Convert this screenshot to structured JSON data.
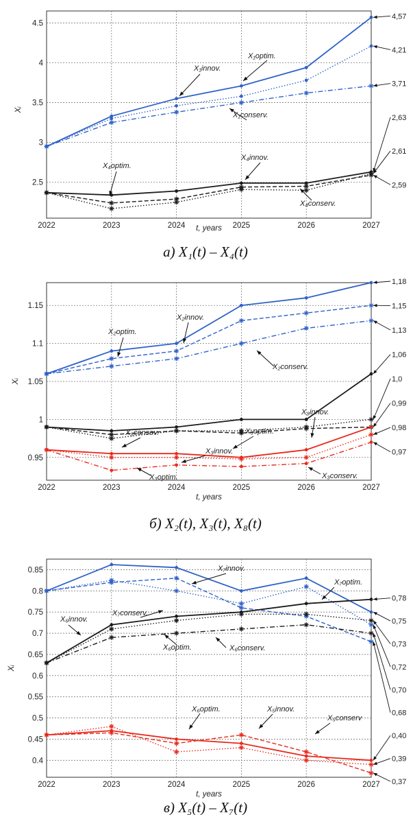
{
  "colors": {
    "blue": "#2f62c8",
    "black": "#1b1b1b",
    "red": "#e8291c",
    "grid": "#7a7a7a"
  },
  "chart_data": [
    {
      "type": "line",
      "caption": "а) X₁(t) – X₄(t)",
      "xlabel": "t, years",
      "ylabel": "Xᵢ",
      "x": [
        2022,
        2023,
        2024,
        2025,
        2026,
        2027
      ],
      "xlim": [
        2022,
        2027
      ],
      "ylim": [
        2.05,
        4.65
      ],
      "yticks": [
        2.5,
        3,
        3.5,
        4,
        4.5
      ],
      "ytick_labels": [
        "2.5",
        "3",
        "3.5",
        "4",
        "4.5"
      ],
      "grid": true,
      "series": [
        {
          "name": "X₁innov.",
          "color": "blue",
          "style": "solid",
          "marker": "",
          "values": [
            2.95,
            3.33,
            3.55,
            3.71,
            3.94,
            4.57
          ]
        },
        {
          "name": "X₁optim.",
          "color": "blue",
          "style": "dotted",
          "marker": "",
          "values": [
            2.95,
            3.3,
            3.46,
            3.58,
            3.78,
            4.21
          ]
        },
        {
          "name": "X₁conserv.",
          "color": "blue",
          "style": "dashdot",
          "marker": "*",
          "values": [
            2.95,
            3.25,
            3.38,
            3.5,
            3.62,
            3.71
          ]
        },
        {
          "name": "X₄innov.",
          "color": "black",
          "style": "solid",
          "marker": "",
          "values": [
            2.37,
            2.34,
            2.39,
            2.49,
            2.49,
            2.63
          ]
        },
        {
          "name": "X₄optim.",
          "color": "black",
          "style": "dotted",
          "marker": "*",
          "values": [
            2.37,
            2.17,
            2.25,
            2.41,
            2.4,
            2.61
          ]
        },
        {
          "name": "X₄conserv.",
          "color": "black",
          "style": "dashed",
          "marker": "*",
          "values": [
            2.37,
            2.24,
            2.29,
            2.44,
            2.45,
            2.59
          ]
        }
      ],
      "end_labels": [
        "4,57",
        "4,21",
        "3,71",
        "2,63",
        "2,61",
        "2,59"
      ],
      "annotations": [
        {
          "text": "X₁optim."
        },
        {
          "text": "X₁innov."
        },
        {
          "text": "X₁conserv."
        },
        {
          "text": "X₄optim."
        },
        {
          "text": "X₄innov."
        },
        {
          "text": "X₄conserv."
        }
      ]
    },
    {
      "type": "line",
      "caption": "б) X₂(t), X₃(t), X₈(t)",
      "xlabel": "t, years",
      "ylabel": "Xᵢ",
      "x": [
        2022,
        2023,
        2024,
        2025,
        2026,
        2027
      ],
      "xlim": [
        2022,
        2027
      ],
      "ylim": [
        0.92,
        1.18
      ],
      "yticks": [
        0.95,
        1,
        1.05,
        1.1,
        1.15
      ],
      "ytick_labels": [
        "0.95",
        "1",
        "1.05",
        "1.1",
        "1.15"
      ],
      "grid": true,
      "series": [
        {
          "name": "X₂innov.",
          "color": "blue",
          "style": "solid",
          "marker": "",
          "values": [
            1.06,
            1.09,
            1.1,
            1.15,
            1.16,
            1.18
          ]
        },
        {
          "name": "X₂optim.",
          "color": "blue",
          "style": "dashed",
          "marker": "*",
          "values": [
            1.06,
            1.08,
            1.09,
            1.13,
            1.14,
            1.15
          ]
        },
        {
          "name": "X₂conserv.",
          "color": "blue",
          "style": "dashdot",
          "marker": "*",
          "values": [
            1.06,
            1.07,
            1.08,
            1.1,
            1.12,
            1.13
          ]
        },
        {
          "name": "X₈innov.",
          "color": "black",
          "style": "solid",
          "marker": "",
          "values": [
            0.99,
            0.985,
            0.99,
            1.0,
            1.0,
            1.06
          ]
        },
        {
          "name": "X₈optim.",
          "color": "black",
          "style": "dotted",
          "marker": "*",
          "values": [
            0.99,
            0.975,
            0.985,
            0.985,
            0.99,
            1.0
          ]
        },
        {
          "name": "X₈conserv.",
          "color": "black",
          "style": "dashed",
          "marker": "*",
          "values": [
            0.99,
            0.98,
            0.985,
            0.982,
            0.988,
            0.99
          ]
        },
        {
          "name": "X₃innov.",
          "color": "red",
          "style": "solid",
          "marker": "",
          "values": [
            0.96,
            0.955,
            0.955,
            0.95,
            0.96,
            0.99
          ]
        },
        {
          "name": "X₃optim.",
          "color": "red",
          "style": "dotted",
          "marker": "*",
          "values": [
            0.96,
            0.95,
            0.95,
            0.948,
            0.95,
            0.98
          ]
        },
        {
          "name": "X₃conserv.",
          "color": "red",
          "style": "dashdot",
          "marker": "",
          "values": [
            0.96,
            0.933,
            0.94,
            0.938,
            0.942,
            0.97
          ]
        }
      ],
      "end_labels": [
        "1,18",
        "1,15",
        "1,13",
        "1,06",
        "1,0",
        "0,99",
        "0,98",
        "0,97"
      ],
      "annotations": [
        {
          "text": "X₂optim."
        },
        {
          "text": "X₂innov."
        },
        {
          "text": "X₂conserv."
        },
        {
          "text": "X₈innov."
        },
        {
          "text": "X₈consev."
        },
        {
          "text": "X₈optim."
        },
        {
          "text": "X₃innov."
        },
        {
          "text": "X₃optim."
        },
        {
          "text": "X₃conserv."
        }
      ]
    },
    {
      "type": "line",
      "caption": "в) X₅(t) – X₇(t)",
      "xlabel": "t, years",
      "ylabel": "Xᵢ",
      "x": [
        2022,
        2023,
        2024,
        2025,
        2026,
        2027
      ],
      "xlim": [
        2022,
        2027
      ],
      "ylim": [
        0.36,
        0.875
      ],
      "yticks": [
        0.4,
        0.45,
        0.5,
        0.55,
        0.6,
        0.65,
        0.7,
        0.75,
        0.8,
        0.85
      ],
      "ytick_labels": [
        "0.4",
        "0.45",
        "0.5",
        "0.55",
        "0.6",
        "0.65",
        "0.7",
        "0.75",
        "0.8",
        "0.85"
      ],
      "grid": true,
      "series": [
        {
          "name": "X₇innov.",
          "color": "blue",
          "style": "solid",
          "marker": "",
          "values": [
            0.8,
            0.862,
            0.855,
            0.8,
            0.83,
            0.75
          ]
        },
        {
          "name": "X₇optim.",
          "color": "blue",
          "style": "dotted",
          "marker": "*",
          "values": [
            0.8,
            0.825,
            0.8,
            0.77,
            0.81,
            0.72
          ]
        },
        {
          "name": "X₇conserv.",
          "color": "blue",
          "style": "dashed",
          "marker": "*",
          "values": [
            0.8,
            0.82,
            0.83,
            0.76,
            0.74,
            0.68
          ]
        },
        {
          "name": "X₆innov.",
          "color": "black",
          "style": "solid",
          "marker": "",
          "values": [
            0.63,
            0.72,
            0.74,
            0.75,
            0.77,
            0.78
          ]
        },
        {
          "name": "X₆optim.",
          "color": "black",
          "style": "dotted",
          "marker": "*",
          "values": [
            0.63,
            0.71,
            0.73,
            0.745,
            0.745,
            0.73
          ]
        },
        {
          "name": "X₆conserv.",
          "color": "black",
          "style": "dashdot",
          "marker": "*",
          "values": [
            0.63,
            0.69,
            0.7,
            0.71,
            0.72,
            0.7
          ]
        },
        {
          "name": "X₅innov.",
          "color": "red",
          "style": "solid",
          "marker": "",
          "values": [
            0.46,
            0.47,
            0.45,
            0.44,
            0.41,
            0.4
          ]
        },
        {
          "name": "X₅optim.",
          "color": "red",
          "style": "dotted",
          "marker": "*",
          "values": [
            0.46,
            0.48,
            0.42,
            0.43,
            0.4,
            0.39
          ]
        },
        {
          "name": "X₅conserv.",
          "color": "red",
          "style": "dashed",
          "marker": "*",
          "values": [
            0.46,
            0.465,
            0.44,
            0.46,
            0.42,
            0.37
          ]
        }
      ],
      "end_labels": [
        "0,78",
        "0,75",
        "0,73",
        "0,72",
        "0,70",
        "0,68",
        "0,40",
        "0,39",
        "0,37"
      ],
      "annotations": [
        {
          "text": "X₇innov."
        },
        {
          "text": "X₇optim."
        },
        {
          "text": "X₆innov."
        },
        {
          "text": "X₇conserv."
        },
        {
          "text": "X₆optim."
        },
        {
          "text": "X₆conserv."
        },
        {
          "text": "X₆optim."
        },
        {
          "text": "X₅innov."
        },
        {
          "text": "X₅conserv"
        }
      ]
    }
  ]
}
